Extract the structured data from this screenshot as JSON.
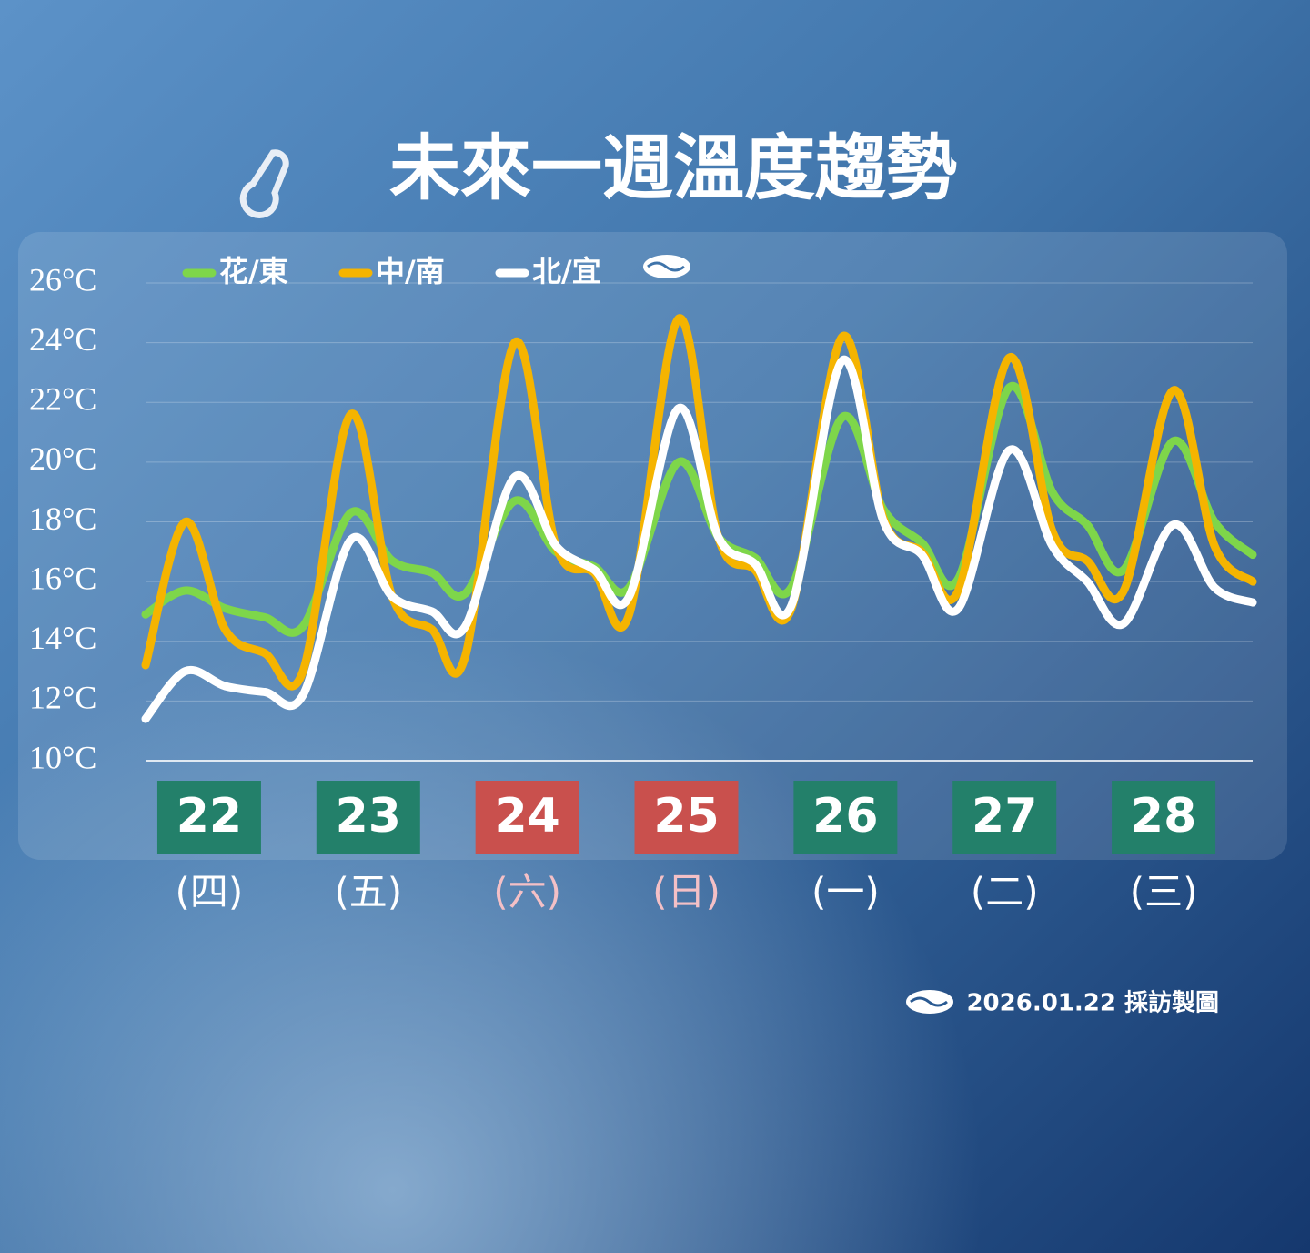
{
  "chart_data": {
    "type": "line",
    "title": "未來一週溫度趨勢",
    "x": [
      21.6,
      21.85,
      22.1,
      22.35,
      22.59,
      22.89,
      23.15,
      23.4,
      23.61,
      23.92,
      24.18,
      24.42,
      24.64,
      24.95,
      25.2,
      25.43,
      25.66,
      25.98,
      26.24,
      26.48,
      26.71,
      27.03,
      27.3,
      27.52,
      27.75,
      28.06,
      28.32,
      28.56
    ],
    "xlim": [
      21.6,
      28.56
    ],
    "xticks": [
      22,
      23,
      24,
      25,
      26,
      27,
      28
    ],
    "weekdays": [
      "(四)",
      "(五)",
      "(六)",
      "(日)",
      "(一)",
      "(二)",
      "(三)"
    ],
    "weekend_ticks": [
      24,
      25
    ],
    "tick_box_color": "#23806a",
    "weekend_box_color": "#c9504d",
    "weekend_text_color": "#f4c0c6",
    "ylim": [
      10,
      26
    ],
    "yticks": [
      {
        "value": 10,
        "label": "10°C"
      },
      {
        "value": 12,
        "label": "12°C"
      },
      {
        "value": 14,
        "label": "14°C"
      },
      {
        "value": 16,
        "label": "16°C"
      },
      {
        "value": 18,
        "label": "18°C"
      },
      {
        "value": 20,
        "label": "20°C"
      },
      {
        "value": 22,
        "label": "22°C"
      },
      {
        "value": 24,
        "label": "24°C"
      },
      {
        "value": 26,
        "label": "26°C"
      }
    ],
    "grid": true,
    "legend": "top-left",
    "series": [
      {
        "name": "花/東",
        "color": "#7ed64a",
        "values": [
          14.9,
          15.7,
          15.1,
          14.8,
          14.5,
          18.3,
          16.7,
          16.3,
          15.6,
          18.7,
          17.0,
          16.5,
          15.8,
          20.0,
          17.5,
          16.8,
          15.8,
          21.5,
          18.4,
          17.3,
          16.1,
          22.5,
          19.0,
          17.9,
          16.4,
          20.7,
          18.0,
          16.9
        ]
      },
      {
        "name": "中/南",
        "color": "#f5b400",
        "values": [
          13.2,
          18.0,
          14.4,
          13.6,
          13.0,
          21.6,
          15.5,
          14.4,
          13.5,
          24.0,
          17.2,
          16.3,
          14.9,
          24.8,
          17.5,
          16.4,
          15.1,
          24.2,
          18.1,
          17.0,
          15.7,
          23.5,
          17.7,
          16.7,
          15.7,
          22.4,
          17.2,
          16.0
        ]
      },
      {
        "name": "北/宜",
        "color": "#ffffff",
        "values": [
          11.4,
          13.0,
          12.5,
          12.3,
          12.2,
          17.4,
          15.5,
          15.0,
          14.5,
          19.5,
          17.2,
          16.4,
          15.5,
          21.8,
          17.5,
          16.6,
          15.2,
          23.4,
          18.0,
          16.9,
          15.1,
          20.4,
          17.2,
          16.0,
          14.6,
          17.9,
          15.8,
          15.3
        ]
      }
    ],
    "footer": "2026.01.22 採訪製圖"
  }
}
